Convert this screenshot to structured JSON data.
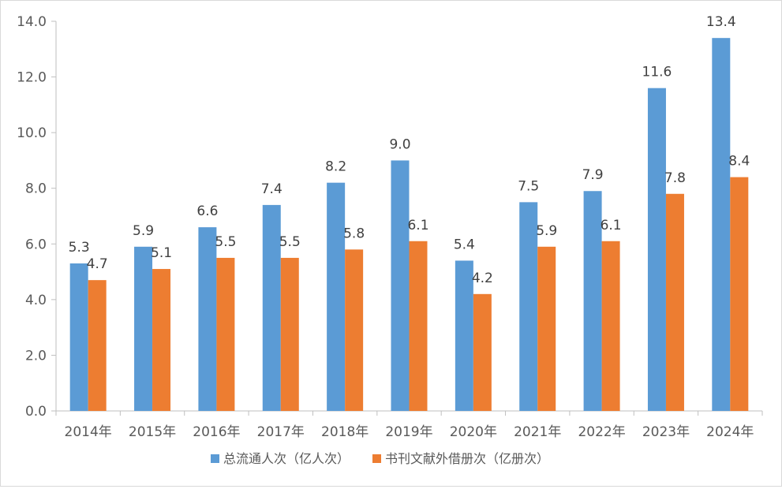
{
  "chart_data": {
    "type": "bar",
    "categories": [
      "2014年",
      "2015年",
      "2016年",
      "2017年",
      "2018年",
      "2019年",
      "2020年",
      "2021年",
      "2022年",
      "2023年",
      "2024年"
    ],
    "series": [
      {
        "name": "总流通人次（亿人次）",
        "color": "#5b9bd5",
        "values": [
          5.3,
          5.9,
          6.6,
          7.4,
          8.2,
          9.0,
          5.4,
          7.5,
          7.9,
          11.6,
          13.4
        ]
      },
      {
        "name": "书刊文献外借册次（亿册次）",
        "color": "#ed7d31",
        "values": [
          4.7,
          5.1,
          5.5,
          5.5,
          5.8,
          6.1,
          4.2,
          5.9,
          6.1,
          7.8,
          8.4
        ]
      }
    ],
    "ylim": [
      0,
      14
    ],
    "yticks": [
      "0.0",
      "2.0",
      "4.0",
      "6.0",
      "8.0",
      "10.0",
      "12.0",
      "14.0"
    ],
    "data_labels": [
      [
        "5.3",
        "5.9",
        "6.6",
        "7.4",
        "8.2",
        "9.0",
        "5.4",
        "7.5",
        "7.9",
        "11.6",
        "13.4"
      ],
      [
        "4.7",
        "5.1",
        "5.5",
        "5.5",
        "5.8",
        "6.1",
        "4.2",
        "5.9",
        "6.1",
        "7.8",
        "8.4"
      ]
    ],
    "grid": false,
    "legend_position": "bottom"
  }
}
